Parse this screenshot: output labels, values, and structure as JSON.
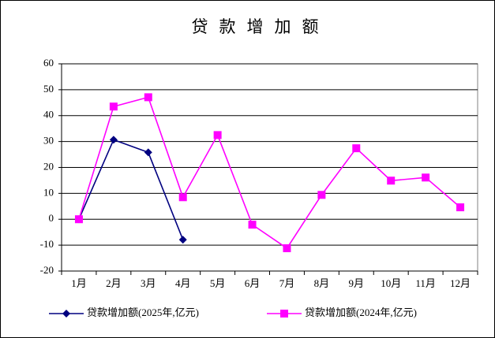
{
  "chart_data": {
    "type": "line",
    "title": "贷款增加额",
    "categories": [
      "1月",
      "2月",
      "3月",
      "4月",
      "5月",
      "6月",
      "7月",
      "8月",
      "9月",
      "10月",
      "11月",
      "12月"
    ],
    "series": [
      {
        "name": "贷款增加额(2025年,亿元)",
        "color": "#000080",
        "marker": "diamond",
        "values": [
          0,
          30.7,
          25.8,
          -7.9,
          null,
          null,
          null,
          null,
          null,
          null,
          null,
          null
        ]
      },
      {
        "name": "贷款增加额(2024年,亿元)",
        "color": "#ff00ff",
        "marker": "square",
        "values": [
          0,
          43.5,
          47.1,
          8.5,
          32.5,
          -2.1,
          -11.2,
          9.4,
          27.4,
          14.9,
          16.1,
          4.6
        ]
      }
    ],
    "ylim": [
      -20,
      60
    ],
    "yticks": [
      -20,
      -10,
      0,
      10,
      20,
      30,
      40,
      50,
      60
    ],
    "grid": true,
    "legend": "bottom"
  }
}
